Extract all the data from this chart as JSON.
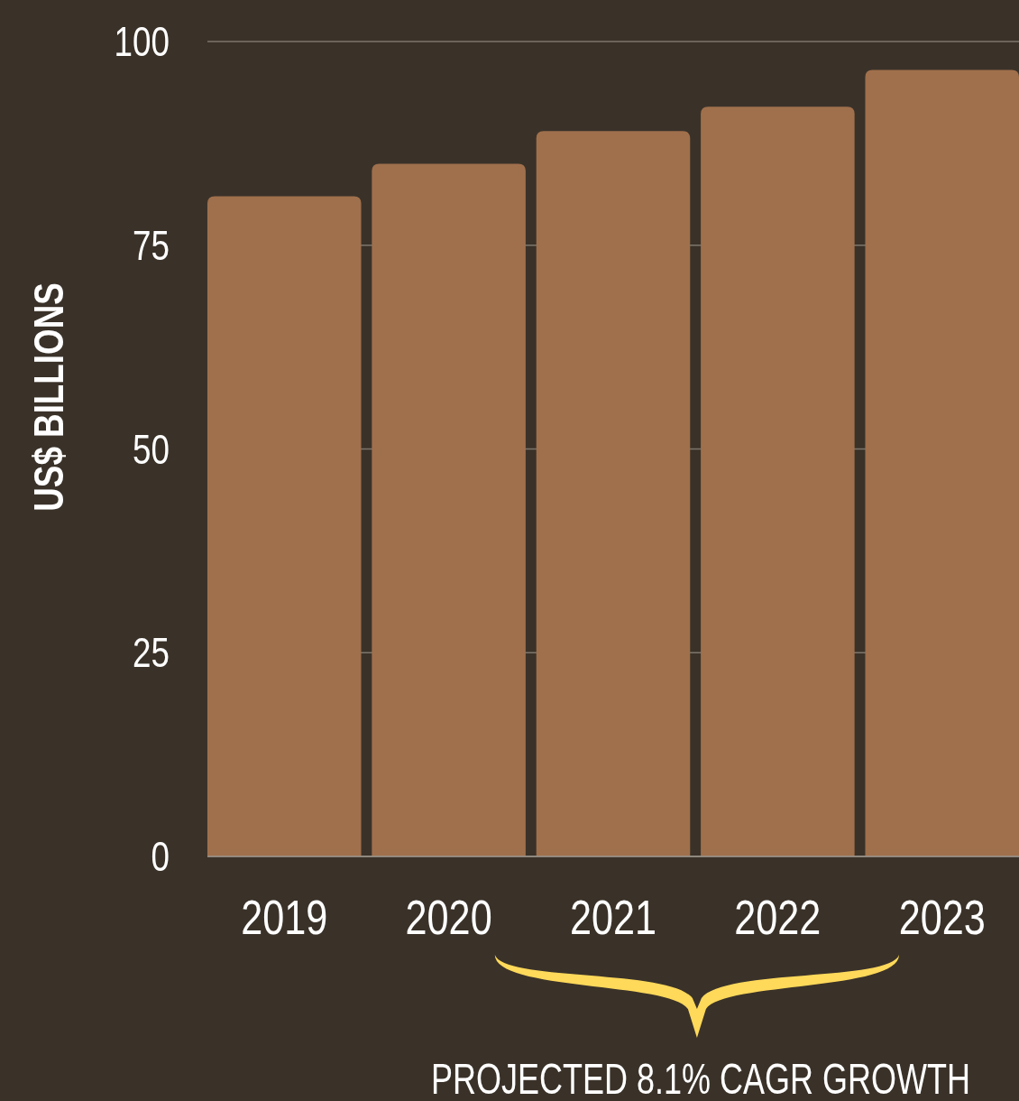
{
  "chart_data": {
    "type": "bar",
    "ylabel": "US$ BILLIONS",
    "categories": [
      "2019",
      "2020",
      "2021",
      "2022",
      "2023"
    ],
    "values": [
      81,
      85,
      89,
      92,
      96.5
    ],
    "color": "#a0704c",
    "ylim": [
      0,
      100
    ],
    "yticks": [
      0,
      25,
      50,
      75,
      100
    ],
    "grid": "y",
    "annotations": [
      "PROJECTED 8.1% CAGR GROWTH"
    ]
  }
}
